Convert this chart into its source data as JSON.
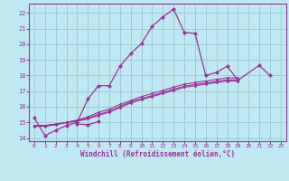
{
  "background_color": "#c0e8f0",
  "grid_color": "#a0ccd8",
  "line_color": "#993399",
  "marker_color": "#993399",
  "xlabel": "Windchill (Refroidissement éolien,°C)",
  "xlabel_color": "#993399",
  "tick_color": "#993399",
  "xlim": [
    -0.5,
    23.5
  ],
  "ylim": [
    13.8,
    22.6
  ],
  "yticks": [
    14,
    15,
    16,
    17,
    18,
    19,
    20,
    21,
    22
  ],
  "xticks": [
    0,
    1,
    2,
    3,
    4,
    5,
    6,
    7,
    8,
    9,
    10,
    11,
    12,
    13,
    14,
    15,
    16,
    17,
    18,
    19,
    20,
    21,
    22,
    23
  ],
  "series": [
    [
      15.3,
      14.15,
      14.5,
      14.8,
      15.0,
      16.5,
      17.35,
      17.35,
      18.6,
      19.4,
      20.05,
      21.15,
      21.75,
      22.25,
      20.75,
      20.7,
      18.0,
      18.2,
      18.6,
      17.7,
      null,
      18.65,
      18.0,
      null
    ],
    [
      null,
      null,
      null,
      null,
      14.9,
      14.85,
      15.05,
      null,
      null,
      null,
      null,
      null,
      null,
      null,
      null,
      null,
      null,
      null,
      null,
      null,
      null,
      null,
      null,
      null
    ],
    [
      14.75,
      14.75,
      14.85,
      15.0,
      15.15,
      15.35,
      15.65,
      15.85,
      16.15,
      16.4,
      16.65,
      16.85,
      17.05,
      17.25,
      17.45,
      17.55,
      17.65,
      17.75,
      17.85,
      17.85,
      null,
      null,
      null,
      null
    ],
    [
      14.8,
      14.8,
      14.9,
      15.0,
      15.1,
      15.28,
      15.52,
      15.72,
      16.02,
      16.32,
      16.52,
      16.72,
      16.92,
      17.12,
      17.32,
      17.42,
      17.52,
      17.62,
      17.72,
      17.72,
      null,
      null,
      null,
      null
    ],
    [
      14.8,
      14.8,
      14.88,
      14.98,
      15.08,
      15.22,
      15.45,
      15.65,
      15.95,
      16.25,
      16.45,
      16.65,
      16.85,
      17.05,
      17.25,
      17.35,
      17.45,
      17.55,
      17.65,
      17.65,
      null,
      null,
      null,
      null
    ]
  ]
}
